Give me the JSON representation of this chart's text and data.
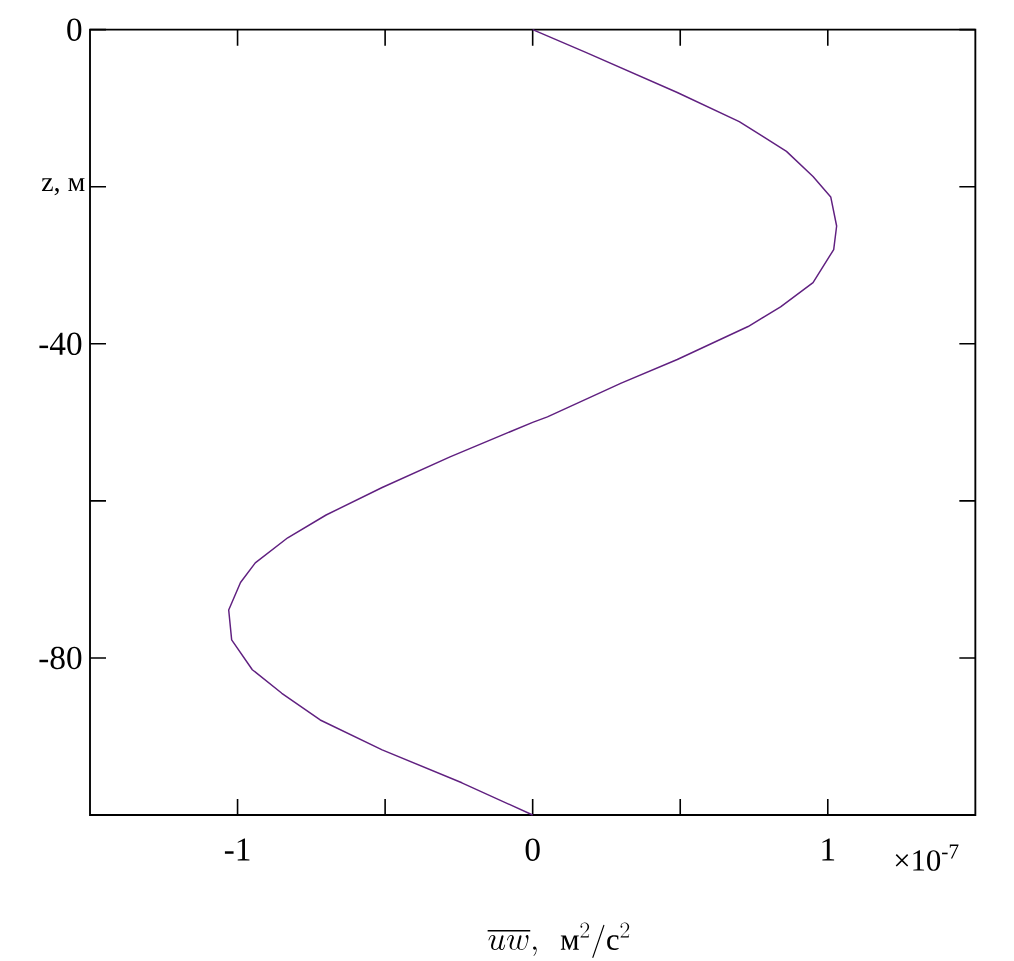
{
  "chart_data": {
    "type": "line",
    "xlabel": "\\overline{uw},\\ \\ \\text{м}^{2}/\\text{с}^{2}",
    "ylabel": "z, м",
    "annotations": [
      "×10$^{-7}$"
    ],
    "xlim": [
      -1.5,
      1.5
    ],
    "ylim": [
      -100,
      0
    ],
    "xticks": [
      -1,
      {
        "value": -0.5,
        "label": null
      },
      0,
      {
        "value": 0.5,
        "label": null
      },
      1
    ],
    "yticks": [
      {
        "value": -80,
        "label": "-80"
      },
      {
        "value": -60,
        "label": null
      },
      {
        "value": -40,
        "label": "-40"
      },
      {
        "value": -20,
        "label": null
      },
      0
    ],
    "marker": "none",
    "line_style": "solid",
    "series": [
      {
        "color": "#602080",
        "x": [
          0,
          0.18,
          0.49,
          0.7,
          0.86,
          0.95,
          1.01,
          1.03,
          1.02,
          0.95,
          0.84,
          0.73,
          0.49,
          0.3,
          0.05,
          0,
          -0.28,
          -0.51,
          -0.7,
          -0.83,
          -0.94,
          -0.99,
          -1.03,
          -1.02,
          -0.95,
          -0.85,
          -0.72,
          -0.51,
          -0.24,
          0
        ],
        "values": [
          0,
          -2.9,
          -8,
          -11.7,
          -15.5,
          -18.7,
          -21.3,
          -25,
          -28,
          -32.2,
          -35.3,
          -37.8,
          -42,
          -45,
          -49.3,
          -50,
          -54.4,
          -58.3,
          -61.8,
          -64.7,
          -67.9,
          -70.4,
          -73.9,
          -77.7,
          -81.5,
          -84.5,
          -87.9,
          -91.7,
          -95.9,
          -100
        ]
      }
    ]
  }
}
